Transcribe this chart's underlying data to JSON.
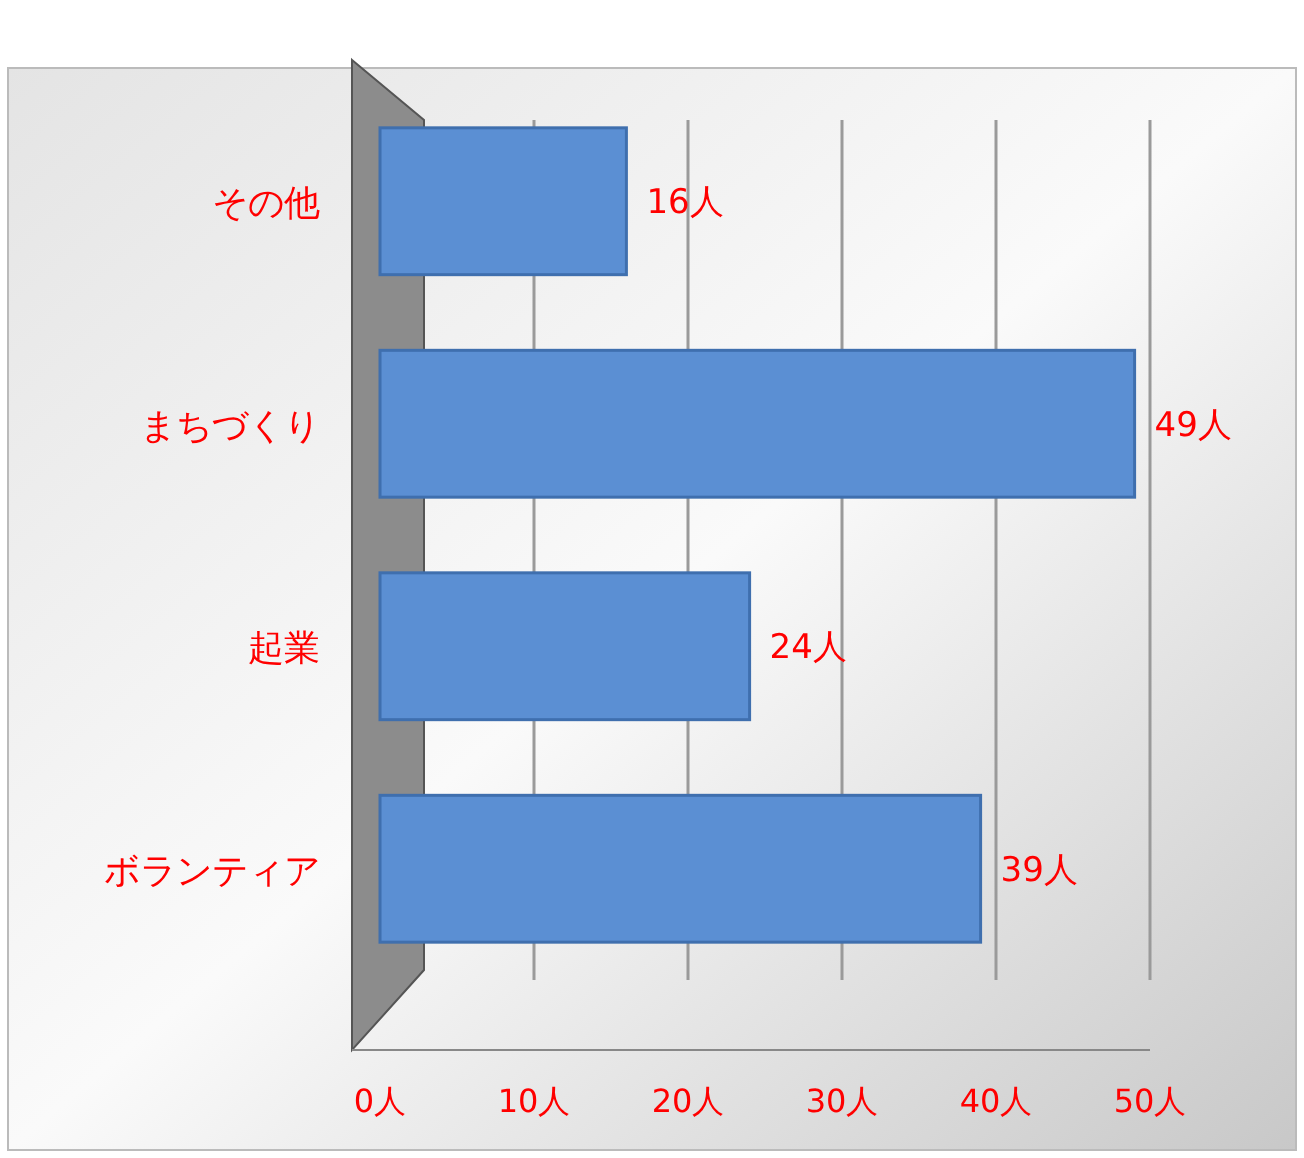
{
  "chart_data": {
    "type": "bar",
    "orientation": "horizontal",
    "categories": [
      "その他",
      "まちづくり",
      "起業",
      "ボランティア"
    ],
    "values": [
      16,
      49,
      24,
      39
    ],
    "value_labels": [
      "16人",
      "49人",
      "24人",
      "39人"
    ],
    "color": "#5b8fd3",
    "xlim": [
      0,
      50
    ],
    "xticks": [
      {
        "value": 0,
        "label": "0人"
      },
      {
        "value": 10,
        "label": "10人"
      },
      {
        "value": 20,
        "label": "20人"
      },
      {
        "value": 30,
        "label": "30人"
      },
      {
        "value": 40,
        "label": "40人"
      },
      {
        "value": 50,
        "label": "50人"
      }
    ],
    "grid": "x"
  }
}
